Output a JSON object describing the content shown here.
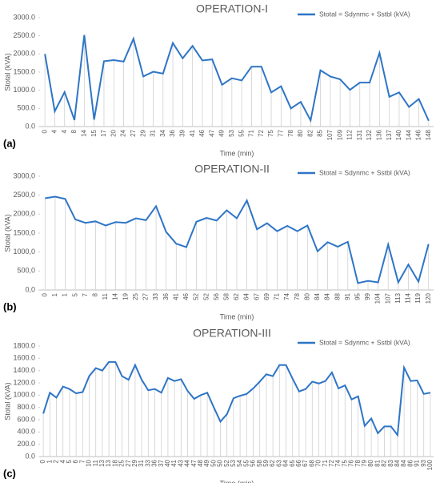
{
  "chart_data": [
    {
      "type": "line",
      "title": "OPERATION-I",
      "label": "(a)",
      "x_label": "Time (min)",
      "y_label": "Stotal  (kVA)",
      "categories": [
        "0",
        "4",
        "4",
        "8",
        "14",
        "15",
        "17",
        "20",
        "24",
        "27",
        "29",
        "31",
        "34",
        "36",
        "39",
        "41",
        "46",
        "47",
        "49",
        "53",
        "55",
        "71",
        "72",
        "75",
        "77",
        "78",
        "80",
        "82",
        "85",
        "107",
        "109",
        "112",
        "131",
        "132",
        "136",
        "137",
        "140",
        "144",
        "146",
        "148"
      ],
      "series": [
        {
          "name": "Stotal =  Sdynmc + Sstbl (kVA)",
          "color": "#2e75c6",
          "values": [
            2000,
            420,
            950,
            180,
            2520,
            190,
            1800,
            1830,
            1790,
            2420,
            1380,
            1510,
            1460,
            2300,
            1880,
            2220,
            1820,
            1850,
            1150,
            1330,
            1270,
            1650,
            1650,
            940,
            1110,
            500,
            680,
            170,
            1550,
            1380,
            1300,
            1010,
            1210,
            1210,
            2030,
            820,
            940,
            540,
            760,
            160
          ]
        }
      ],
      "ylim": [
        0,
        3000
      ],
      "yticks": [
        {
          "value": 0,
          "label": "0.0"
        },
        {
          "value": 500,
          "label": "500.0"
        },
        {
          "value": 1000,
          "label": "1000.0"
        },
        {
          "value": 1500,
          "label": "1500.0"
        },
        {
          "value": 2000,
          "label": "2000.0"
        },
        {
          "value": 2500,
          "label": "2500.0"
        },
        {
          "value": 3000,
          "label": "3000.0"
        }
      ],
      "drop_lines": true,
      "legend": "top-right"
    },
    {
      "type": "line",
      "title": "OPERATION-II",
      "label": "(b)",
      "x_label": "Time (min)",
      "y_label": "Stotal  (kVA)",
      "categories": [
        "0",
        "1",
        "1",
        "5",
        "7",
        "8",
        "11",
        "14",
        "19",
        "25",
        "27",
        "33",
        "36",
        "41",
        "46",
        "52",
        "52",
        "56",
        "58",
        "62",
        "64",
        "67",
        "69",
        "71",
        "74",
        "78",
        "80",
        "84",
        "84",
        "88",
        "91",
        "95",
        "99",
        "104",
        "107",
        "113",
        "114",
        "119",
        "120"
      ],
      "series": [
        {
          "name": "Stotal =  Sdynmc + Sstbl (kVA)",
          "color": "#2e75c6",
          "values": [
            2420,
            2460,
            2400,
            1860,
            1770,
            1810,
            1700,
            1790,
            1770,
            1890,
            1840,
            2210,
            1530,
            1220,
            1130,
            1800,
            1900,
            1830,
            2100,
            1890,
            2360,
            1600,
            1760,
            1550,
            1690,
            1550,
            1700,
            1020,
            1260,
            1140,
            1270,
            180,
            240,
            200,
            1200,
            200,
            670,
            220,
            1210
          ]
        }
      ],
      "ylim": [
        0,
        3000
      ],
      "yticks": [
        {
          "value": 0,
          "label": "0,0"
        },
        {
          "value": 500,
          "label": "500,0"
        },
        {
          "value": 1000,
          "label": "1000,0"
        },
        {
          "value": 1500,
          "label": "1500,0"
        },
        {
          "value": 2000,
          "label": "2000,0"
        },
        {
          "value": 2500,
          "label": "2500,0"
        },
        {
          "value": 3000,
          "label": "3000,0"
        }
      ],
      "drop_lines": true,
      "legend": "top-right"
    },
    {
      "type": "line",
      "title": "OPERATION-III",
      "label": "(c)",
      "x_label": "Time (min)",
      "y_label": "Stotal  (kVA)",
      "categories": [
        "0",
        "1",
        "2",
        "4",
        "5",
        "6",
        "7",
        "10",
        "11",
        "13",
        "13",
        "18",
        "25",
        "27",
        "29",
        "31",
        "33",
        "36",
        "37",
        "40",
        "41",
        "43",
        "44",
        "47",
        "48",
        "49",
        "50",
        "50",
        "52",
        "53",
        "54",
        "55",
        "56",
        "58",
        "59",
        "62",
        "63",
        "64",
        "65",
        "66",
        "67",
        "68",
        "70",
        "71",
        "72",
        "74",
        "75",
        "76",
        "78",
        "79",
        "80",
        "81",
        "82",
        "83",
        "84",
        "84",
        "86",
        "91",
        "93",
        "100"
      ],
      "series": [
        {
          "name": "Stotal =  Sdynmc + Sstbl (kVA)",
          "color": "#2e75c6",
          "values": [
            700,
            1040,
            960,
            1140,
            1100,
            1030,
            1050,
            1310,
            1440,
            1400,
            1540,
            1540,
            1310,
            1250,
            1490,
            1250,
            1080,
            1100,
            1040,
            1280,
            1230,
            1260,
            1070,
            940,
            1000,
            1040,
            800,
            570,
            690,
            950,
            990,
            1020,
            1110,
            1220,
            1340,
            1310,
            1490,
            1490,
            1270,
            1060,
            1100,
            1220,
            1190,
            1230,
            1370,
            1110,
            1160,
            930,
            980,
            500,
            620,
            380,
            490,
            490,
            350,
            1450,
            1230,
            1240,
            1020,
            1040
          ]
        }
      ],
      "ylim": [
        0,
        1800
      ],
      "yticks": [
        {
          "value": 0,
          "label": "0.0"
        },
        {
          "value": 200,
          "label": "200.0"
        },
        {
          "value": 400,
          "label": "400.0"
        },
        {
          "value": 600,
          "label": "600.0"
        },
        {
          "value": 800,
          "label": "800.0"
        },
        {
          "value": 1000,
          "label": "1000.0"
        },
        {
          "value": 1200,
          "label": "1200.0"
        },
        {
          "value": 1400,
          "label": "1400.0"
        },
        {
          "value": 1600,
          "label": "1600.0"
        },
        {
          "value": 1800,
          "label": "1800.0"
        }
      ],
      "drop_lines": true,
      "legend": "top-right"
    }
  ]
}
